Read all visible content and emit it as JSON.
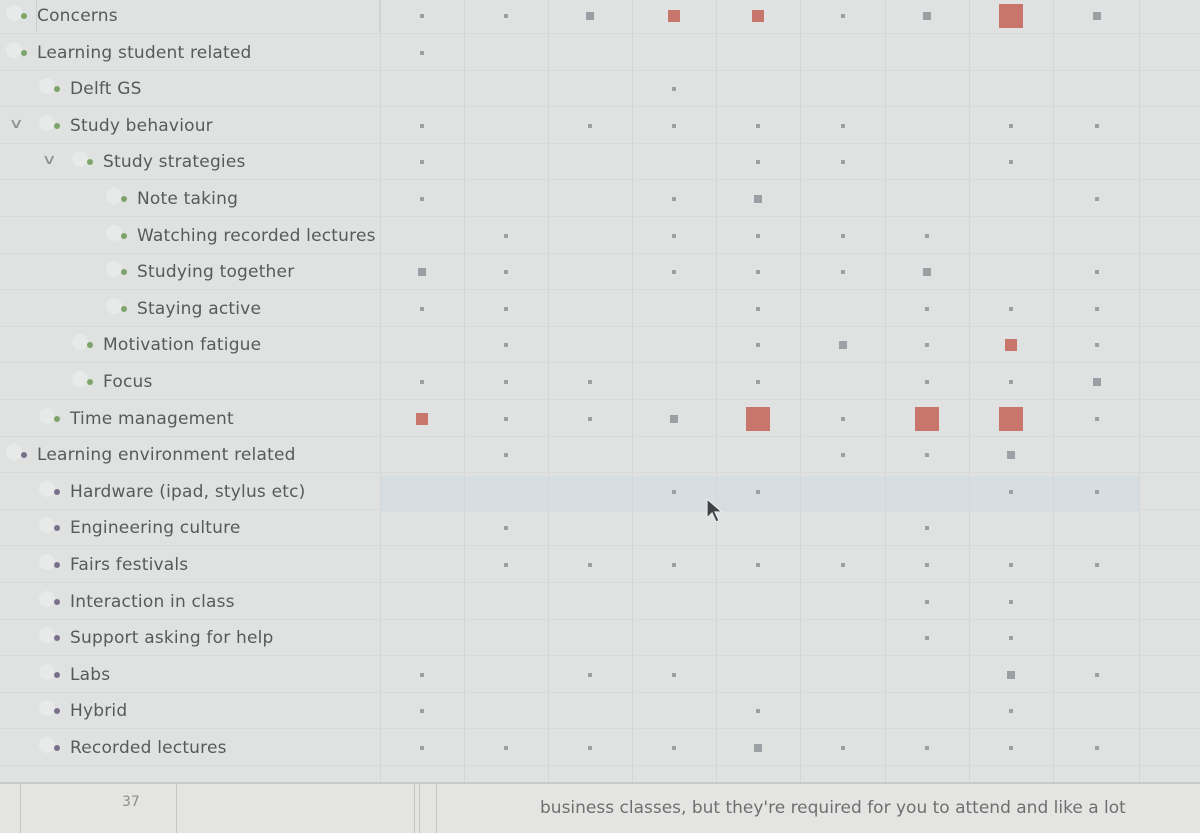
{
  "colors": {
    "mark_low": "#9aa0a3",
    "mark_high": "#c8766c",
    "node_dot_green": "#7da46a",
    "node_dot_purple": "#7c6f8c",
    "label": "#565a59"
  },
  "matrix": {
    "columns": 9,
    "rows": [
      {
        "label": "Concerns",
        "level": 0,
        "dot": "green",
        "expander": false,
        "cells": [
          1,
          1,
          2,
          3,
          3,
          1,
          2,
          4,
          2
        ]
      },
      {
        "label": "Learning student related",
        "level": 0,
        "dot": "green",
        "expander": false,
        "cells": [
          1,
          0,
          0,
          0,
          0,
          0,
          0,
          0,
          0
        ]
      },
      {
        "label": "Delft GS",
        "level": 1,
        "dot": "green",
        "expander": false,
        "cells": [
          0,
          0,
          0,
          1,
          0,
          0,
          0,
          0,
          0
        ]
      },
      {
        "label": "Study behaviour",
        "level": 1,
        "dot": "green",
        "expander": true,
        "cells": [
          1,
          0,
          1,
          1,
          1,
          1,
          0,
          1,
          1
        ]
      },
      {
        "label": "Study strategies",
        "level": 2,
        "dot": "green",
        "expander": true,
        "cells": [
          1,
          0,
          0,
          0,
          1,
          1,
          0,
          1,
          0
        ]
      },
      {
        "label": "Note taking",
        "level": 3,
        "dot": "green",
        "expander": false,
        "cells": [
          1,
          0,
          0,
          1,
          2,
          0,
          0,
          0,
          1
        ]
      },
      {
        "label": "Watching recorded lectures",
        "level": 3,
        "dot": "green",
        "expander": false,
        "cells": [
          0,
          1,
          0,
          1,
          1,
          1,
          1,
          0,
          0
        ]
      },
      {
        "label": "Studying together",
        "level": 3,
        "dot": "green",
        "expander": false,
        "cells": [
          2,
          1,
          0,
          1,
          1,
          1,
          2,
          0,
          1
        ]
      },
      {
        "label": "Staying active",
        "level": 3,
        "dot": "green",
        "expander": false,
        "cells": [
          1,
          1,
          0,
          0,
          1,
          0,
          1,
          1,
          1
        ]
      },
      {
        "label": "Motivation fatigue",
        "level": 2,
        "dot": "green",
        "expander": false,
        "cells": [
          0,
          1,
          0,
          0,
          1,
          2,
          1,
          3,
          1
        ]
      },
      {
        "label": "Focus",
        "level": 2,
        "dot": "green",
        "expander": false,
        "cells": [
          1,
          1,
          1,
          0,
          1,
          0,
          1,
          1,
          2
        ]
      },
      {
        "label": "Time management",
        "level": 1,
        "dot": "green",
        "expander": false,
        "cells": [
          3,
          1,
          1,
          2,
          4,
          1,
          4,
          4,
          1
        ]
      },
      {
        "label": "Learning environment related",
        "level": 0,
        "dot": "purple",
        "expander": false,
        "cells": [
          0,
          1,
          0,
          0,
          0,
          1,
          1,
          2,
          0
        ]
      },
      {
        "label": "Hardware (ipad, stylus etc)",
        "level": 1,
        "dot": "purple",
        "expander": false,
        "cells": [
          0,
          0,
          0,
          1,
          1,
          0,
          0,
          1,
          1
        ]
      },
      {
        "label": "Engineering culture",
        "level": 1,
        "dot": "purple",
        "expander": false,
        "cells": [
          0,
          1,
          0,
          0,
          0,
          0,
          1,
          0,
          0
        ]
      },
      {
        "label": "Fairs festivals",
        "level": 1,
        "dot": "purple",
        "expander": false,
        "cells": [
          0,
          1,
          1,
          1,
          1,
          1,
          1,
          1,
          1
        ]
      },
      {
        "label": "Interaction in class",
        "level": 1,
        "dot": "purple",
        "expander": false,
        "cells": [
          0,
          0,
          0,
          0,
          0,
          0,
          1,
          1,
          0
        ]
      },
      {
        "label": "Support asking for help",
        "level": 1,
        "dot": "purple",
        "expander": false,
        "cells": [
          0,
          0,
          0,
          0,
          0,
          0,
          1,
          1,
          0
        ]
      },
      {
        "label": "Labs",
        "level": 1,
        "dot": "purple",
        "expander": false,
        "cells": [
          1,
          0,
          1,
          1,
          0,
          0,
          0,
          2,
          1
        ]
      },
      {
        "label": "Hybrid",
        "level": 1,
        "dot": "purple",
        "expander": false,
        "cells": [
          1,
          0,
          0,
          0,
          1,
          0,
          0,
          1,
          0
        ]
      },
      {
        "label": "Recorded lectures",
        "level": 1,
        "dot": "purple",
        "expander": false,
        "cells": [
          1,
          1,
          1,
          1,
          2,
          1,
          1,
          1,
          1
        ]
      }
    ]
  },
  "document": {
    "row_number": "37",
    "snippet": "business classes, but they're required for you to attend and like a lot"
  }
}
